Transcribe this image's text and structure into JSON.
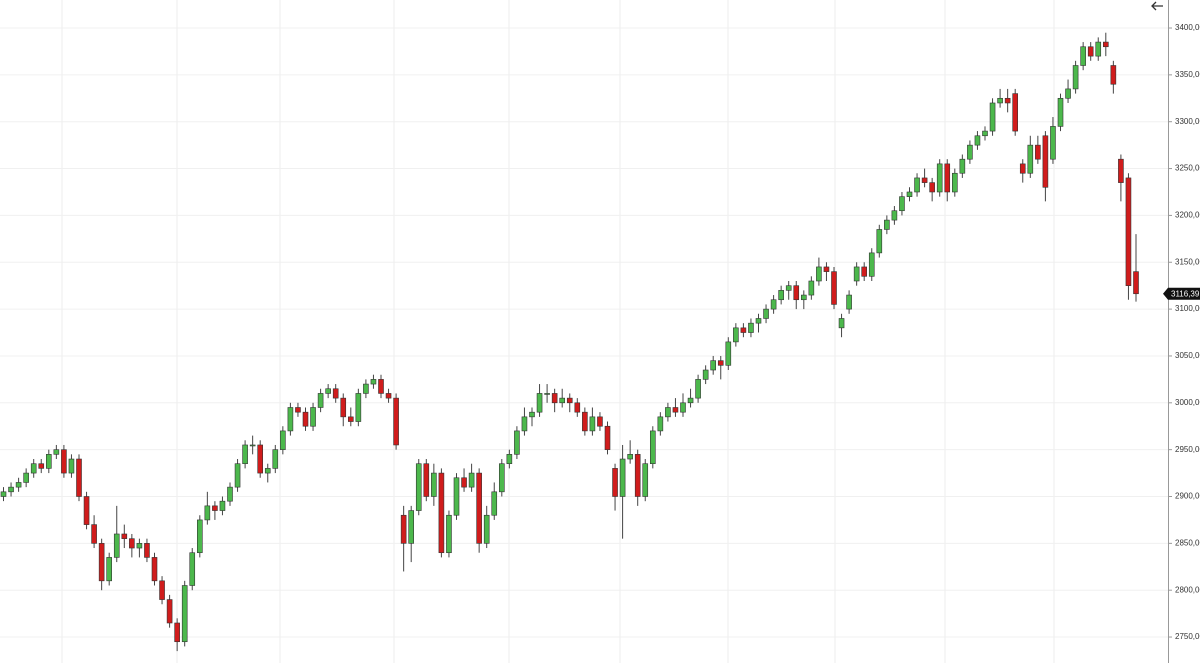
{
  "chart_data": {
    "type": "candlestick",
    "up_color": "#4cb84c",
    "down_color": "#d01c1c",
    "ylim": [
      2722.3,
      3429.9
    ],
    "yticks": [
      {
        "value": 2750,
        "label": "2750,00"
      },
      {
        "value": 2800,
        "label": "2800,00"
      },
      {
        "value": 2850,
        "label": "2850,00"
      },
      {
        "value": 2900,
        "label": "2900,00"
      },
      {
        "value": 2950,
        "label": "2950,00"
      },
      {
        "value": 3000,
        "label": "3000,00"
      },
      {
        "value": 3050,
        "label": "3050,00"
      },
      {
        "value": 3100,
        "label": "3100,00"
      },
      {
        "value": 3150,
        "label": "3150,00"
      },
      {
        "value": 3200,
        "label": "3200,00"
      },
      {
        "value": 3250,
        "label": "3250,00"
      },
      {
        "value": 3300,
        "label": "3300,00"
      },
      {
        "value": 3350,
        "label": "3350,00"
      },
      {
        "value": 3400,
        "label": "3400,00"
      }
    ],
    "grid": true,
    "last_price": {
      "value": 3116.39,
      "label": "3116,39"
    },
    "ohlc": [
      [
        2900,
        2910,
        2895,
        2905
      ],
      [
        2905,
        2915,
        2900,
        2910
      ],
      [
        2910,
        2920,
        2905,
        2915
      ],
      [
        2915,
        2930,
        2910,
        2925
      ],
      [
        2925,
        2940,
        2920,
        2935
      ],
      [
        2935,
        2940,
        2925,
        2930
      ],
      [
        2930,
        2950,
        2925,
        2945
      ],
      [
        2945,
        2955,
        2940,
        2950
      ],
      [
        2950,
        2955,
        2920,
        2925
      ],
      [
        2925,
        2945,
        2920,
        2940
      ],
      [
        2940,
        2945,
        2895,
        2900
      ],
      [
        2900,
        2905,
        2865,
        2870
      ],
      [
        2870,
        2880,
        2845,
        2850
      ],
      [
        2850,
        2855,
        2800,
        2810
      ],
      [
        2810,
        2840,
        2805,
        2835
      ],
      [
        2835,
        2890,
        2830,
        2860
      ],
      [
        2860,
        2870,
        2845,
        2855
      ],
      [
        2855,
        2860,
        2835,
        2845
      ],
      [
        2845,
        2855,
        2835,
        2850
      ],
      [
        2850,
        2855,
        2830,
        2835
      ],
      [
        2835,
        2840,
        2805,
        2810
      ],
      [
        2810,
        2815,
        2785,
        2790
      ],
      [
        2790,
        2795,
        2760,
        2765
      ],
      [
        2765,
        2770,
        2735,
        2745
      ],
      [
        2745,
        2810,
        2740,
        2805
      ],
      [
        2805,
        2845,
        2800,
        2840
      ],
      [
        2840,
        2880,
        2835,
        2875
      ],
      [
        2875,
        2905,
        2870,
        2890
      ],
      [
        2890,
        2895,
        2875,
        2885
      ],
      [
        2885,
        2900,
        2880,
        2895
      ],
      [
        2895,
        2915,
        2890,
        2910
      ],
      [
        2910,
        2940,
        2905,
        2935
      ],
      [
        2935,
        2960,
        2930,
        2955
      ],
      [
        2955,
        2965,
        2945,
        2955
      ],
      [
        2955,
        2960,
        2920,
        2925
      ],
      [
        2925,
        2935,
        2915,
        2930
      ],
      [
        2930,
        2955,
        2925,
        2950
      ],
      [
        2950,
        2975,
        2945,
        2970
      ],
      [
        2970,
        3000,
        2965,
        2995
      ],
      [
        2995,
        3000,
        2985,
        2990
      ],
      [
        2990,
        2995,
        2970,
        2975
      ],
      [
        2975,
        3000,
        2970,
        2995
      ],
      [
        2995,
        3015,
        2990,
        3010
      ],
      [
        3010,
        3020,
        3005,
        3015
      ],
      [
        3015,
        3020,
        3000,
        3005
      ],
      [
        3005,
        3010,
        2975,
        2985
      ],
      [
        2985,
        2995,
        2975,
        2980
      ],
      [
        2980,
        3015,
        2975,
        3010
      ],
      [
        3010,
        3025,
        3005,
        3020
      ],
      [
        3020,
        3030,
        3015,
        3025
      ],
      [
        3025,
        3030,
        3005,
        3010
      ],
      [
        3010,
        3015,
        3000,
        3005
      ],
      [
        3005,
        3010,
        2950,
        2955
      ],
      [
        2880,
        2890,
        2820,
        2850
      ],
      [
        2850,
        2890,
        2830,
        2885
      ],
      [
        2885,
        2940,
        2880,
        2935
      ],
      [
        2935,
        2940,
        2895,
        2900
      ],
      [
        2900,
        2935,
        2890,
        2925
      ],
      [
        2925,
        2930,
        2835,
        2840
      ],
      [
        2840,
        2885,
        2835,
        2880
      ],
      [
        2880,
        2925,
        2875,
        2920
      ],
      [
        2920,
        2930,
        2905,
        2910
      ],
      [
        2910,
        2935,
        2905,
        2925
      ],
      [
        2925,
        2930,
        2840,
        2850
      ],
      [
        2850,
        2890,
        2845,
        2880
      ],
      [
        2880,
        2915,
        2875,
        2905
      ],
      [
        2905,
        2940,
        2900,
        2935
      ],
      [
        2935,
        2950,
        2930,
        2945
      ],
      [
        2945,
        2975,
        2940,
        2970
      ],
      [
        2970,
        2995,
        2965,
        2985
      ],
      [
        2985,
        2995,
        2975,
        2990
      ],
      [
        2990,
        3020,
        2985,
        3010
      ],
      [
        3010,
        3020,
        3000,
        3010
      ],
      [
        3010,
        3015,
        2990,
        3000
      ],
      [
        3000,
        3015,
        2995,
        3005
      ],
      [
        3005,
        3010,
        2990,
        3000
      ],
      [
        3000,
        3005,
        2985,
        2990
      ],
      [
        2990,
        2995,
        2965,
        2970
      ],
      [
        2970,
        2995,
        2965,
        2985
      ],
      [
        2985,
        2990,
        2970,
        2975
      ],
      [
        2975,
        2980,
        2945,
        2950
      ],
      [
        2930,
        2935,
        2885,
        2900
      ],
      [
        2900,
        2955,
        2855,
        2940
      ],
      [
        2940,
        2960,
        2935,
        2945
      ],
      [
        2945,
        2950,
        2890,
        2900
      ],
      [
        2900,
        2940,
        2895,
        2935
      ],
      [
        2935,
        2975,
        2930,
        2970
      ],
      [
        2970,
        2990,
        2965,
        2985
      ],
      [
        2985,
        3000,
        2980,
        2995
      ],
      [
        2995,
        3005,
        2985,
        2990
      ],
      [
        2990,
        3010,
        2985,
        3000
      ],
      [
        3000,
        3015,
        2995,
        3005
      ],
      [
        3005,
        3030,
        3000,
        3025
      ],
      [
        3025,
        3040,
        3020,
        3035
      ],
      [
        3035,
        3050,
        3030,
        3045
      ],
      [
        3045,
        3050,
        3025,
        3040
      ],
      [
        3040,
        3070,
        3035,
        3065
      ],
      [
        3065,
        3085,
        3060,
        3080
      ],
      [
        3080,
        3085,
        3070,
        3075
      ],
      [
        3075,
        3090,
        3070,
        3085
      ],
      [
        3085,
        3095,
        3075,
        3090
      ],
      [
        3090,
        3105,
        3085,
        3100
      ],
      [
        3100,
        3115,
        3095,
        3110
      ],
      [
        3110,
        3125,
        3105,
        3120
      ],
      [
        3120,
        3130,
        3110,
        3125
      ],
      [
        3125,
        3130,
        3100,
        3110
      ],
      [
        3110,
        3120,
        3100,
        3115
      ],
      [
        3115,
        3135,
        3110,
        3130
      ],
      [
        3130,
        3155,
        3125,
        3145
      ],
      [
        3145,
        3150,
        3130,
        3140
      ],
      [
        3140,
        3145,
        3100,
        3105
      ],
      [
        3080,
        3095,
        3070,
        3090
      ],
      [
        3100,
        3120,
        3095,
        3115
      ],
      [
        3130,
        3150,
        3125,
        3145
      ],
      [
        3145,
        3150,
        3130,
        3135
      ],
      [
        3135,
        3165,
        3130,
        3160
      ],
      [
        3160,
        3190,
        3155,
        3185
      ],
      [
        3185,
        3200,
        3180,
        3195
      ],
      [
        3195,
        3210,
        3190,
        3205
      ],
      [
        3205,
        3225,
        3200,
        3220
      ],
      [
        3220,
        3230,
        3215,
        3225
      ],
      [
        3225,
        3245,
        3220,
        3240
      ],
      [
        3240,
        3250,
        3230,
        3235
      ],
      [
        3235,
        3240,
        3215,
        3225
      ],
      [
        3225,
        3260,
        3220,
        3255
      ],
      [
        3255,
        3260,
        3215,
        3225
      ],
      [
        3225,
        3250,
        3220,
        3245
      ],
      [
        3245,
        3265,
        3240,
        3260
      ],
      [
        3260,
        3280,
        3255,
        3275
      ],
      [
        3275,
        3290,
        3270,
        3285
      ],
      [
        3285,
        3295,
        3280,
        3290
      ],
      [
        3290,
        3325,
        3285,
        3320
      ],
      [
        3320,
        3335,
        3315,
        3325
      ],
      [
        3325,
        3335,
        3310,
        3320
      ],
      [
        3330,
        3335,
        3285,
        3290
      ],
      [
        3255,
        3260,
        3235,
        3245
      ],
      [
        3245,
        3285,
        3240,
        3275
      ],
      [
        3275,
        3285,
        3255,
        3260
      ],
      [
        3285,
        3290,
        3215,
        3230
      ],
      [
        3260,
        3305,
        3255,
        3295
      ],
      [
        3295,
        3330,
        3290,
        3325
      ],
      [
        3325,
        3345,
        3320,
        3335
      ],
      [
        3335,
        3365,
        3330,
        3360
      ],
      [
        3360,
        3385,
        3355,
        3380
      ],
      [
        3380,
        3385,
        3365,
        3370
      ],
      [
        3370,
        3390,
        3365,
        3385
      ],
      [
        3385,
        3395,
        3370,
        3380
      ],
      [
        3360,
        3365,
        3330,
        3340
      ],
      [
        3260,
        3265,
        3215,
        3235
      ],
      [
        3240,
        3245,
        3110,
        3125
      ],
      [
        3140,
        3180,
        3108,
        3116.39
      ]
    ]
  }
}
